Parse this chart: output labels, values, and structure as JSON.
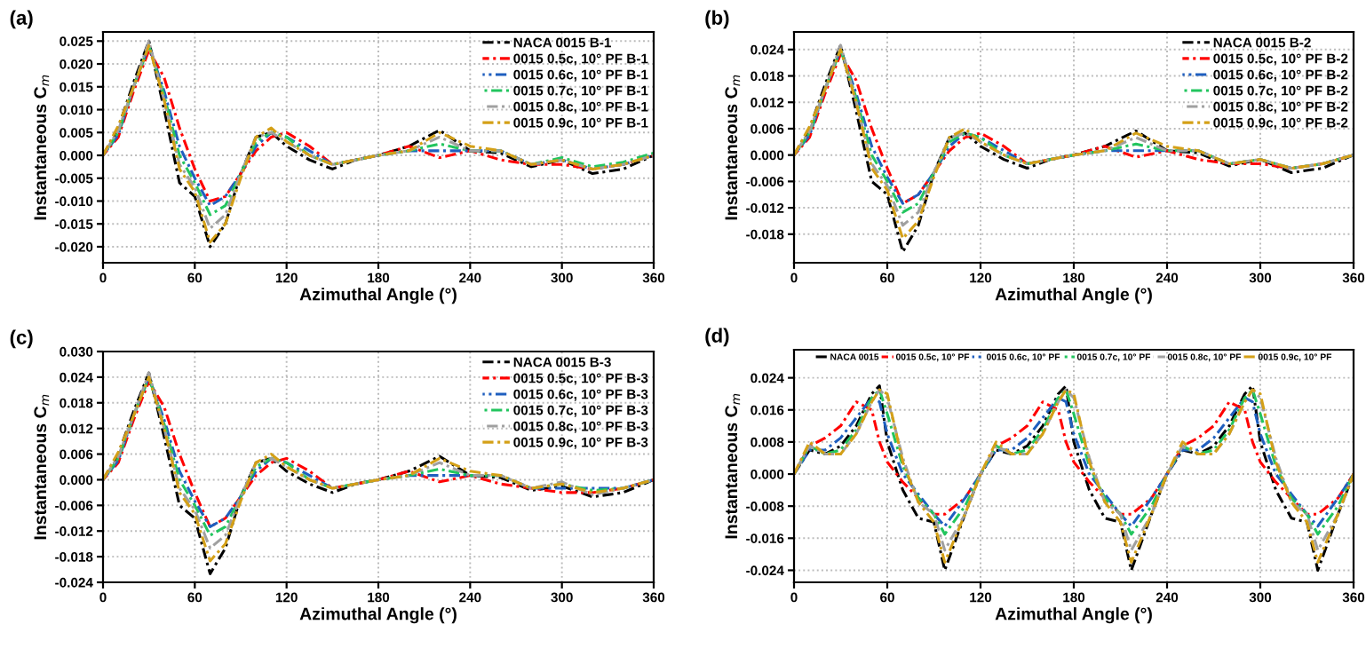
{
  "chart_data": [
    {
      "type": "line",
      "title": "(a)",
      "xlabel": "Azimuthal Angle (°)",
      "ylabel": "Instantaneous C$_{m}$",
      "xlim": [
        0,
        360
      ],
      "xticks": [
        0,
        60,
        120,
        180,
        240,
        300,
        360
      ],
      "ylim": [
        -0.0235,
        0.027
      ],
      "yticks": [
        {
          "value": -0.02,
          "label": "-0.020"
        },
        {
          "value": -0.015,
          "label": "-0.015"
        },
        {
          "value": -0.01,
          "label": "-0.010"
        },
        {
          "value": -0.005,
          "label": "-0.005"
        },
        {
          "value": 0,
          "label": "0.000"
        },
        {
          "value": 0.005,
          "label": "0.005"
        },
        {
          "value": 0.01,
          "label": "0.010"
        },
        {
          "value": 0.015,
          "label": "0.015"
        },
        {
          "value": 0.02,
          "label": "0.020"
        },
        {
          "value": 0.025,
          "label": "0.025"
        }
      ],
      "grid": true,
      "legend": "top right",
      "line_style": "dashdot",
      "x": [
        0,
        10,
        20,
        30,
        40,
        50,
        60,
        70,
        80,
        90,
        100,
        110,
        120,
        135,
        150,
        165,
        180,
        200,
        220,
        240,
        260,
        280,
        300,
        320,
        340,
        360
      ],
      "series": [
        {
          "name": "NACA 0015 B-1",
          "color": "#000000",
          "values": [
            0,
            0.006,
            0.016,
            0.025,
            0.01,
            -0.006,
            -0.009,
            -0.02,
            -0.015,
            -0.004,
            0.004,
            0.005,
            0.002,
            -0.001,
            -0.003,
            -0.001,
            0.0,
            0.002,
            0.0055,
            0.001,
            0.0005,
            -0.0025,
            -0.001,
            -0.004,
            -0.003,
            0
          ]
        },
        {
          "name": "0015 0.5c, 10° PF B-1",
          "color": "#ff0000",
          "values": [
            0,
            0.004,
            0.014,
            0.023,
            0.017,
            0.006,
            -0.003,
            -0.01,
            -0.009,
            -0.004,
            0.001,
            0.004,
            0.005,
            0.002,
            -0.002,
            -0.001,
            0.0,
            0.002,
            -0.0005,
            0.001,
            -0.001,
            -0.002,
            -0.002,
            -0.003,
            -0.002,
            0
          ]
        },
        {
          "name": "0015 0.6c, 10° PF B-1",
          "color": "#1f5fbf",
          "values": [
            0,
            0.0045,
            0.015,
            0.024,
            0.014,
            0.002,
            -0.005,
            -0.011,
            -0.009,
            -0.004,
            0.002,
            0.005,
            0.004,
            0.001,
            -0.002,
            -0.001,
            0,
            0.001,
            0.001,
            0.001,
            0.001,
            -0.002,
            -0.001,
            -0.003,
            -0.002,
            0
          ]
        },
        {
          "name": "0015 0.7c, 10° PF B-1",
          "color": "#22c55e",
          "values": [
            0,
            0.005,
            0.015,
            0.024,
            0.013,
            0.0,
            -0.006,
            -0.013,
            -0.011,
            -0.004,
            0.003,
            0.005,
            0.004,
            0.0,
            -0.002,
            -0.001,
            0,
            0.001,
            0.0025,
            0.001,
            0.001,
            -0.002,
            -0.0005,
            -0.0025,
            -0.0015,
            0.0005
          ]
        },
        {
          "name": "0015 0.8c, 10° PF B-1",
          "color": "#a0a0a0",
          "values": [
            0,
            0.0055,
            0.015,
            0.025,
            0.012,
            -0.002,
            -0.007,
            -0.016,
            -0.013,
            -0.004,
            0.004,
            0.005,
            0.003,
            0,
            -0.002,
            -0.001,
            0,
            0.001,
            0.004,
            0.001,
            0.001,
            -0.002,
            -0.001,
            -0.003,
            -0.002,
            0
          ]
        },
        {
          "name": "0015 0.9c, 10° PF B-1",
          "color": "#d4a017",
          "values": [
            0,
            0.0065,
            0.015,
            0.024,
            0.012,
            -0.003,
            -0.008,
            -0.019,
            -0.015,
            -0.005,
            0.004,
            0.006,
            0.003,
            0,
            -0.002,
            -0.001,
            0,
            0.001,
            0.005,
            0.002,
            0.001,
            -0.002,
            -0.001,
            -0.003,
            -0.002,
            0
          ]
        }
      ]
    },
    {
      "type": "line",
      "title": "(b)",
      "xlabel": "Azimuthal Angle (°)",
      "ylabel": "Instantaneous C$_{m}$",
      "xlim": [
        0,
        360
      ],
      "xticks": [
        0,
        60,
        120,
        180,
        240,
        300,
        360
      ],
      "ylim": [
        -0.0245,
        0.028
      ],
      "yticks": [
        {
          "value": -0.018,
          "label": "-0.018"
        },
        {
          "value": -0.012,
          "label": "-0.012"
        },
        {
          "value": -0.006,
          "label": "-0.006"
        },
        {
          "value": 0,
          "label": "0.000"
        },
        {
          "value": 0.006,
          "label": "0.006"
        },
        {
          "value": 0.012,
          "label": "0.012"
        },
        {
          "value": 0.018,
          "label": "0.018"
        },
        {
          "value": 0.024,
          "label": "0.024"
        }
      ],
      "grid": true,
      "legend": "top right",
      "line_style": "dashdot",
      "x": [
        0,
        10,
        20,
        30,
        40,
        50,
        60,
        70,
        80,
        90,
        100,
        110,
        120,
        135,
        150,
        165,
        180,
        200,
        220,
        240,
        260,
        280,
        300,
        320,
        340,
        360
      ],
      "series": [
        {
          "name": "NACA 0015 B-2",
          "color": "#000000",
          "values": [
            0,
            0.006,
            0.016,
            0.025,
            0.01,
            -0.006,
            -0.009,
            -0.022,
            -0.016,
            -0.004,
            0.004,
            0.005,
            0.002,
            -0.001,
            -0.003,
            -0.001,
            0.0,
            0.002,
            0.0055,
            0.001,
            0.0005,
            -0.0025,
            -0.001,
            -0.004,
            -0.003,
            0
          ]
        },
        {
          "name": "0015 0.5c, 10° PF B-2",
          "color": "#ff0000",
          "values": [
            0,
            0.004,
            0.014,
            0.023,
            0.017,
            0.006,
            -0.003,
            -0.011,
            -0.009,
            -0.004,
            0.001,
            0.004,
            0.005,
            0.002,
            -0.002,
            -0.001,
            0.0,
            0.002,
            -0.0005,
            0.001,
            -0.001,
            -0.002,
            -0.002,
            -0.003,
            -0.002,
            0
          ]
        },
        {
          "name": "0015 0.6c, 10° PF B-2",
          "color": "#1f5fbf",
          "values": [
            0,
            0.0045,
            0.015,
            0.024,
            0.014,
            0.002,
            -0.005,
            -0.011,
            -0.009,
            -0.004,
            0.002,
            0.005,
            0.004,
            0.001,
            -0.002,
            -0.001,
            0,
            0.001,
            0.001,
            0.001,
            0.001,
            -0.002,
            -0.001,
            -0.003,
            -0.002,
            0
          ]
        },
        {
          "name": "0015 0.7c, 10° PF B-2",
          "color": "#22c55e",
          "values": [
            0,
            0.005,
            0.015,
            0.024,
            0.013,
            0.0,
            -0.006,
            -0.013,
            -0.011,
            -0.004,
            0.003,
            0.005,
            0.004,
            0.0,
            -0.002,
            -0.001,
            0,
            0.001,
            0.0025,
            0.001,
            0.001,
            -0.002,
            -0.001,
            -0.003,
            -0.002,
            0
          ]
        },
        {
          "name": "0015 0.8c, 10° PF B-2",
          "color": "#a0a0a0",
          "values": [
            0,
            0.0055,
            0.015,
            0.025,
            0.012,
            -0.002,
            -0.007,
            -0.016,
            -0.013,
            -0.004,
            0.004,
            0.005,
            0.003,
            0,
            -0.002,
            -0.001,
            0,
            0.001,
            0.004,
            0.001,
            0.001,
            -0.002,
            -0.001,
            -0.003,
            -0.002,
            0
          ]
        },
        {
          "name": "0015 0.9c, 10° PF B-2",
          "color": "#d4a017",
          "values": [
            0,
            0.0065,
            0.015,
            0.024,
            0.012,
            -0.003,
            -0.008,
            -0.019,
            -0.015,
            -0.005,
            0.004,
            0.006,
            0.003,
            0,
            -0.002,
            -0.001,
            0,
            0.001,
            0.005,
            0.002,
            0.001,
            -0.002,
            -0.001,
            -0.003,
            -0.002,
            0
          ]
        }
      ]
    },
    {
      "type": "line",
      "title": "(c)",
      "xlabel": "Azimuthal Angle (°)",
      "ylabel": "Instantaneous C$_{m}$",
      "xlim": [
        0,
        360
      ],
      "xticks": [
        0,
        60,
        120,
        180,
        240,
        300,
        360
      ],
      "ylim": [
        -0.024,
        0.03
      ],
      "yticks": [
        {
          "value": -0.024,
          "label": "-0.024"
        },
        {
          "value": -0.018,
          "label": "-0.018"
        },
        {
          "value": -0.012,
          "label": "-0.012"
        },
        {
          "value": -0.006,
          "label": "-0.006"
        },
        {
          "value": 0,
          "label": "0.000"
        },
        {
          "value": 0.006,
          "label": "0.006"
        },
        {
          "value": 0.012,
          "label": "0.012"
        },
        {
          "value": 0.018,
          "label": "0.018"
        },
        {
          "value": 0.024,
          "label": "0.024"
        },
        {
          "value": 0.03,
          "label": "0.030"
        }
      ],
      "grid": true,
      "legend": "top right",
      "line_style": "dashdot",
      "x": [
        0,
        10,
        20,
        30,
        40,
        50,
        60,
        70,
        80,
        90,
        100,
        110,
        120,
        135,
        150,
        165,
        180,
        200,
        220,
        240,
        260,
        280,
        300,
        320,
        340,
        360
      ],
      "series": [
        {
          "name": "NACA 0015 B-3",
          "color": "#000000",
          "values": [
            0,
            0.006,
            0.016,
            0.025,
            0.01,
            -0.006,
            -0.009,
            -0.022,
            -0.016,
            -0.004,
            0.004,
            0.005,
            0.002,
            -0.001,
            -0.003,
            -0.001,
            0.0,
            0.002,
            0.0055,
            0.001,
            0.0005,
            -0.0025,
            -0.0015,
            -0.004,
            -0.003,
            0
          ]
        },
        {
          "name": "0015 0.5c, 10° PF B-3",
          "color": "#ff0000",
          "values": [
            0,
            0.004,
            0.014,
            0.023,
            0.017,
            0.006,
            -0.003,
            -0.011,
            -0.009,
            -0.004,
            0.001,
            0.004,
            0.005,
            0.002,
            -0.002,
            -0.001,
            0.0,
            0.002,
            -0.0005,
            0.001,
            -0.001,
            -0.002,
            -0.003,
            -0.003,
            -0.002,
            0
          ]
        },
        {
          "name": "0015 0.6c, 10° PF B-3",
          "color": "#1f5fbf",
          "values": [
            0,
            0.0045,
            0.015,
            0.024,
            0.014,
            0.002,
            -0.005,
            -0.011,
            -0.009,
            -0.004,
            0.002,
            0.005,
            0.004,
            0.001,
            -0.002,
            -0.001,
            0,
            0.001,
            0.001,
            0.001,
            0.001,
            -0.002,
            -0.002,
            -0.002,
            -0.002,
            0
          ]
        },
        {
          "name": "0015 0.7c, 10° PF B-3",
          "color": "#22c55e",
          "values": [
            0,
            0.005,
            0.015,
            0.024,
            0.013,
            0.0,
            -0.006,
            -0.013,
            -0.011,
            -0.004,
            0.003,
            0.005,
            0.004,
            0.0,
            -0.002,
            -0.001,
            0,
            0.001,
            0.0025,
            0.001,
            0.001,
            -0.002,
            -0.001,
            -0.0025,
            -0.002,
            0
          ]
        },
        {
          "name": "0015 0.8c, 10° PF B-3",
          "color": "#a0a0a0",
          "values": [
            0,
            0.0055,
            0.015,
            0.025,
            0.012,
            -0.002,
            -0.007,
            -0.016,
            -0.013,
            -0.004,
            0.004,
            0.005,
            0.003,
            0,
            -0.002,
            -0.001,
            0,
            0.001,
            0.004,
            0.001,
            0.001,
            -0.002,
            -0.0005,
            -0.0035,
            -0.002,
            0
          ]
        },
        {
          "name": "0015 0.9c, 10° PF B-3",
          "color": "#d4a017",
          "values": [
            0,
            0.0065,
            0.015,
            0.024,
            0.012,
            -0.003,
            -0.008,
            -0.019,
            -0.015,
            -0.005,
            0.004,
            0.006,
            0.003,
            0,
            -0.002,
            -0.001,
            0,
            0.001,
            0.005,
            0.002,
            0.001,
            -0.002,
            -0.001,
            -0.003,
            -0.002,
            0
          ]
        }
      ]
    },
    {
      "type": "line",
      "title": "(d)",
      "xlabel": "Azimuthal Angle (°)",
      "ylabel": "Instantaneous C$_{m}$",
      "xlim": [
        0,
        360
      ],
      "xticks": [
        0,
        60,
        120,
        180,
        240,
        300,
        360
      ],
      "ylim": [
        -0.027,
        0.031
      ],
      "yticks": [
        {
          "value": -0.024,
          "label": "-0.024"
        },
        {
          "value": -0.016,
          "label": "-0.016"
        },
        {
          "value": -0.008,
          "label": "-0.008"
        },
        {
          "value": 0,
          "label": "0.000"
        },
        {
          "value": 0.008,
          "label": "0.008"
        },
        {
          "value": 0.016,
          "label": "0.016"
        },
        {
          "value": 0.024,
          "label": "0.024"
        }
      ],
      "grid": true,
      "legend": "top",
      "line_style": "dashdot",
      "x": [
        0,
        10,
        20,
        30,
        40,
        50,
        55,
        60,
        70,
        80,
        90,
        97,
        110,
        120,
        130,
        140,
        150,
        160,
        170,
        175,
        180,
        190,
        200,
        210,
        217,
        230,
        240,
        250,
        260,
        270,
        280,
        290,
        295,
        300,
        310,
        320,
        330,
        337,
        350,
        360
      ],
      "series": [
        {
          "name": "NACA 0015",
          "color": "#000000",
          "values": [
            0,
            0.006,
            0.005,
            0.007,
            0.012,
            0.02,
            0.022,
            0.008,
            -0.004,
            -0.011,
            -0.012,
            -0.024,
            -0.01,
            0,
            0.006,
            0.005,
            0.007,
            0.012,
            0.02,
            0.022,
            0.008,
            -0.004,
            -0.011,
            -0.012,
            -0.024,
            -0.01,
            0,
            0.006,
            0.005,
            0.007,
            0.012,
            0.02,
            0.022,
            0.008,
            -0.004,
            -0.011,
            -0.012,
            -0.024,
            -0.01,
            0
          ]
        },
        {
          "name": "0015 0.5c, 10° PF",
          "color": "#ff0000",
          "values": [
            0,
            0.007,
            0.009,
            0.012,
            0.018,
            0.016,
            0.008,
            0.003,
            -0.002,
            -0.006,
            -0.01,
            -0.01,
            -0.006,
            0,
            0.007,
            0.009,
            0.012,
            0.018,
            0.016,
            0.008,
            0.003,
            -0.002,
            -0.006,
            -0.01,
            -0.01,
            -0.006,
            0,
            0.007,
            0.009,
            0.012,
            0.018,
            0.016,
            0.008,
            0.003,
            -0.002,
            -0.006,
            -0.01,
            -0.01,
            -0.006,
            0
          ]
        },
        {
          "name": "0015 0.6c, 10° PF",
          "color": "#1f5fbf",
          "values": [
            0,
            0.006,
            0.006,
            0.009,
            0.014,
            0.019,
            0.018,
            0.01,
            0.0,
            -0.005,
            -0.01,
            -0.013,
            -0.006,
            0,
            0.006,
            0.006,
            0.009,
            0.014,
            0.019,
            0.018,
            0.01,
            0.0,
            -0.005,
            -0.01,
            -0.013,
            -0.006,
            0,
            0.006,
            0.006,
            0.009,
            0.014,
            0.019,
            0.018,
            0.01,
            0.0,
            -0.005,
            -0.01,
            -0.013,
            -0.006,
            0
          ]
        },
        {
          "name": "0015 0.7c, 10° PF",
          "color": "#22c55e",
          "values": [
            0,
            0.007,
            0.005,
            0.006,
            0.011,
            0.019,
            0.021,
            0.015,
            0.002,
            -0.006,
            -0.01,
            -0.015,
            -0.008,
            0,
            0.007,
            0.005,
            0.006,
            0.011,
            0.019,
            0.021,
            0.015,
            0.002,
            -0.006,
            -0.01,
            -0.015,
            -0.008,
            0,
            0.007,
            0.005,
            0.006,
            0.011,
            0.019,
            0.021,
            0.015,
            0.002,
            -0.006,
            -0.01,
            -0.015,
            -0.008,
            0
          ]
        },
        {
          "name": "0015 0.8c, 10° PF",
          "color": "#a0a0a0",
          "values": [
            0,
            0.007,
            0.005,
            0.005,
            0.01,
            0.018,
            0.021,
            0.019,
            0.004,
            -0.007,
            -0.01,
            -0.019,
            -0.01,
            0,
            0.007,
            0.005,
            0.005,
            0.01,
            0.018,
            0.021,
            0.019,
            0.004,
            -0.007,
            -0.01,
            -0.019,
            -0.01,
            0,
            0.007,
            0.005,
            0.005,
            0.01,
            0.018,
            0.021,
            0.019,
            0.004,
            -0.007,
            -0.01,
            -0.019,
            -0.01,
            0
          ]
        },
        {
          "name": "0015 0.9c, 10° PF",
          "color": "#d4a017",
          "values": [
            0,
            0.008,
            0.005,
            0.005,
            0.01,
            0.018,
            0.021,
            0.02,
            0.003,
            -0.007,
            -0.012,
            -0.022,
            -0.01,
            0,
            0.008,
            0.005,
            0.005,
            0.01,
            0.018,
            0.021,
            0.02,
            0.003,
            -0.007,
            -0.012,
            -0.022,
            -0.01,
            0,
            0.008,
            0.005,
            0.005,
            0.01,
            0.018,
            0.021,
            0.02,
            0.003,
            -0.007,
            -0.012,
            -0.022,
            -0.01,
            0
          ]
        }
      ]
    }
  ]
}
